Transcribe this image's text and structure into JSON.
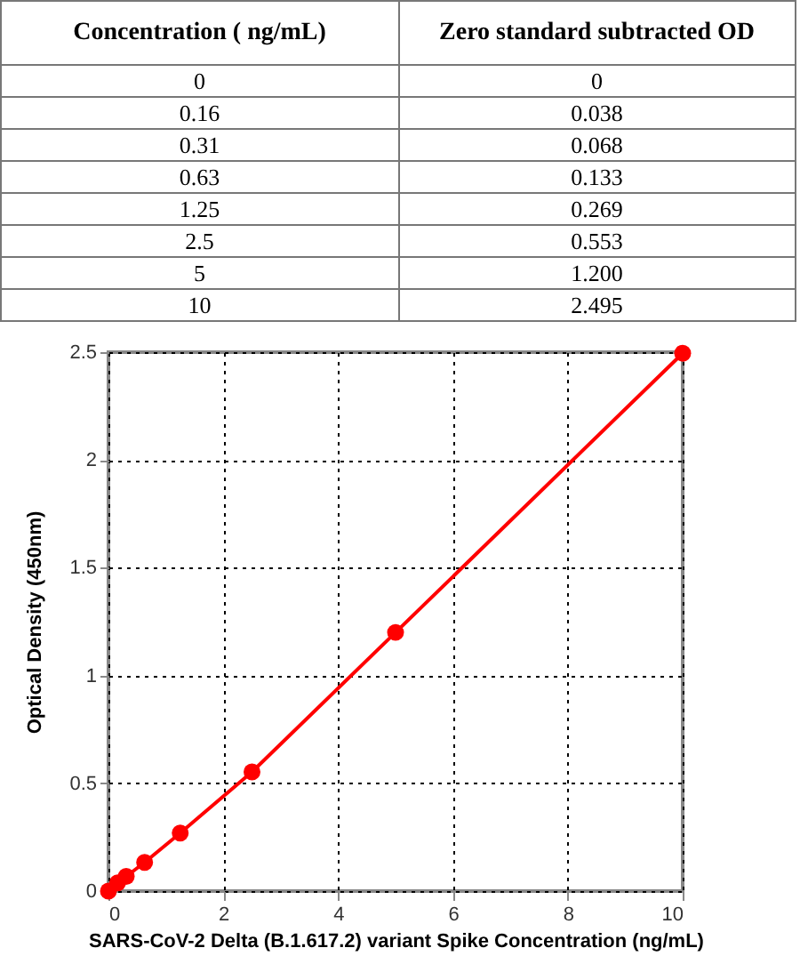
{
  "chart_data": [
    {
      "type": "other",
      "annotations": [
        "Concentration ( ng/mL)",
        "Zero standard subtracted OD",
        "0",
        "0",
        "0.16",
        "0.038",
        "0.31",
        "0.068",
        "0.63",
        "0.133",
        "1.25",
        "0.269",
        "2.5",
        "0.553",
        "5",
        "1.200",
        "10",
        "2.495"
      ]
    },
    {
      "type": "line",
      "xlabel": "SARS-CoV-2 Delta (B.1.617.2) variant Spike Concentration (ng/mL)",
      "ylabel": "Optical Density (450nm)",
      "x": [
        0,
        0.16,
        0.31,
        0.63,
        1.25,
        2.5,
        5,
        10
      ],
      "series": [
        {
          "color": "#ff0000",
          "values": [
            0,
            0.038,
            0.068,
            0.133,
            0.269,
            0.553,
            1.2,
            2.495
          ]
        }
      ],
      "xlim": [
        0,
        10
      ],
      "xticks": [
        0,
        2,
        4,
        6,
        8,
        10
      ],
      "ylim": [
        0,
        2.5
      ],
      "yticks": [
        0,
        0.5,
        1,
        1.5,
        2,
        2.5
      ],
      "grid": true,
      "marker": "circle"
    }
  ]
}
